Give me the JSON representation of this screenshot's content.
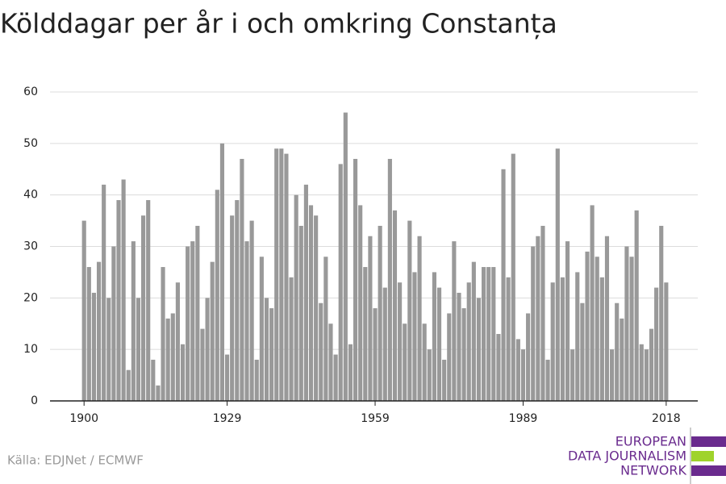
{
  "chart_data": {
    "type": "bar",
    "title": "Kölddagar per år i och omkring Constanța",
    "x": [
      1900,
      1901,
      1902,
      1903,
      1904,
      1905,
      1906,
      1907,
      1908,
      1909,
      1910,
      1911,
      1912,
      1913,
      1914,
      1915,
      1916,
      1917,
      1918,
      1919,
      1920,
      1921,
      1922,
      1923,
      1924,
      1925,
      1926,
      1927,
      1928,
      1929,
      1930,
      1931,
      1932,
      1933,
      1934,
      1935,
      1936,
      1937,
      1938,
      1939,
      1940,
      1941,
      1942,
      1943,
      1944,
      1945,
      1946,
      1947,
      1948,
      1949,
      1950,
      1951,
      1952,
      1953,
      1954,
      1955,
      1956,
      1957,
      1958,
      1959,
      1960,
      1961,
      1962,
      1963,
      1964,
      1965,
      1966,
      1967,
      1968,
      1969,
      1970,
      1971,
      1972,
      1973,
      1974,
      1975,
      1976,
      1977,
      1978,
      1979,
      1980,
      1981,
      1982,
      1983,
      1984,
      1985,
      1986,
      1987,
      1988,
      1989,
      1990,
      1991,
      1992,
      1993,
      1994,
      1995,
      1996,
      1997,
      1998,
      1999,
      2000,
      2001,
      2002,
      2003,
      2004,
      2005,
      2006,
      2007,
      2008,
      2009,
      2010,
      2011,
      2012,
      2013,
      2014,
      2015,
      2016,
      2017,
      2018
    ],
    "values": [
      35,
      26,
      21,
      27,
      42,
      20,
      30,
      39,
      43,
      6,
      31,
      20,
      36,
      39,
      8,
      3,
      26,
      16,
      17,
      23,
      11,
      30,
      31,
      34,
      14,
      20,
      27,
      41,
      50,
      9,
      36,
      39,
      47,
      31,
      35,
      8,
      28,
      20,
      18,
      49,
      49,
      48,
      24,
      40,
      34,
      42,
      38,
      36,
      19,
      28,
      15,
      9,
      46,
      56,
      11,
      47,
      38,
      26,
      32,
      18,
      34,
      22,
      47,
      37,
      23,
      15,
      35,
      25,
      32,
      15,
      10,
      25,
      22,
      8,
      17,
      31,
      21,
      18,
      23,
      27,
      20,
      26,
      26,
      26,
      13,
      45,
      24,
      48,
      12,
      10,
      17,
      30,
      32,
      34,
      8,
      23,
      49,
      24,
      31,
      10,
      25,
      19,
      29,
      38,
      28,
      24,
      32,
      10,
      19,
      16,
      30,
      28,
      37,
      11,
      10,
      14,
      22,
      34,
      23
    ],
    "color": "#999999",
    "xlim": [
      1893.1,
      2024.4
    ],
    "xticks": [
      1900,
      1929,
      1959,
      1989,
      2018
    ],
    "ylim": [
      0,
      60
    ],
    "yticks": [
      0,
      10,
      20,
      30,
      40,
      50,
      60
    ],
    "grid": true,
    "source": "Källa: EDJNet / ECMWF",
    "logo": [
      "EUROPEAN",
      "DATA JOURNALISM",
      "NETWORK"
    ]
  }
}
